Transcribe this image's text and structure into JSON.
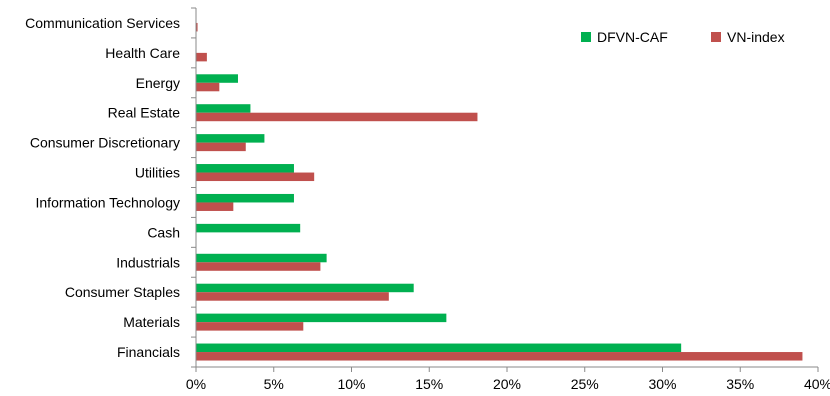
{
  "chart_data": {
    "type": "bar",
    "orientation": "horizontal",
    "categories": [
      "Communication Services",
      "Health Care",
      "Energy",
      "Real Estate",
      "Consumer Discretionary",
      "Utilities",
      "Information Technology",
      "Cash",
      "Industrials",
      "Consumer Staples",
      "Materials",
      "Financials"
    ],
    "series": [
      {
        "name": "DFVN-CAF",
        "color": "#00b050",
        "values": [
          0.0,
          0.0,
          2.7,
          3.5,
          4.4,
          6.3,
          6.3,
          6.7,
          8.4,
          14.0,
          16.1,
          31.2
        ]
      },
      {
        "name": "VN-index",
        "color": "#c0504d",
        "values": [
          0.1,
          0.7,
          1.5,
          18.1,
          3.2,
          7.6,
          2.4,
          0.0,
          8.0,
          12.4,
          6.9,
          39.0
        ]
      }
    ],
    "xlim": [
      0,
      40
    ],
    "xticks": [
      "0%",
      "5%",
      "10%",
      "15%",
      "20%",
      "25%",
      "30%",
      "35%",
      "40%"
    ],
    "title": "",
    "xlabel": "",
    "ylabel": "",
    "grid": false,
    "legend_position": "top-right"
  }
}
